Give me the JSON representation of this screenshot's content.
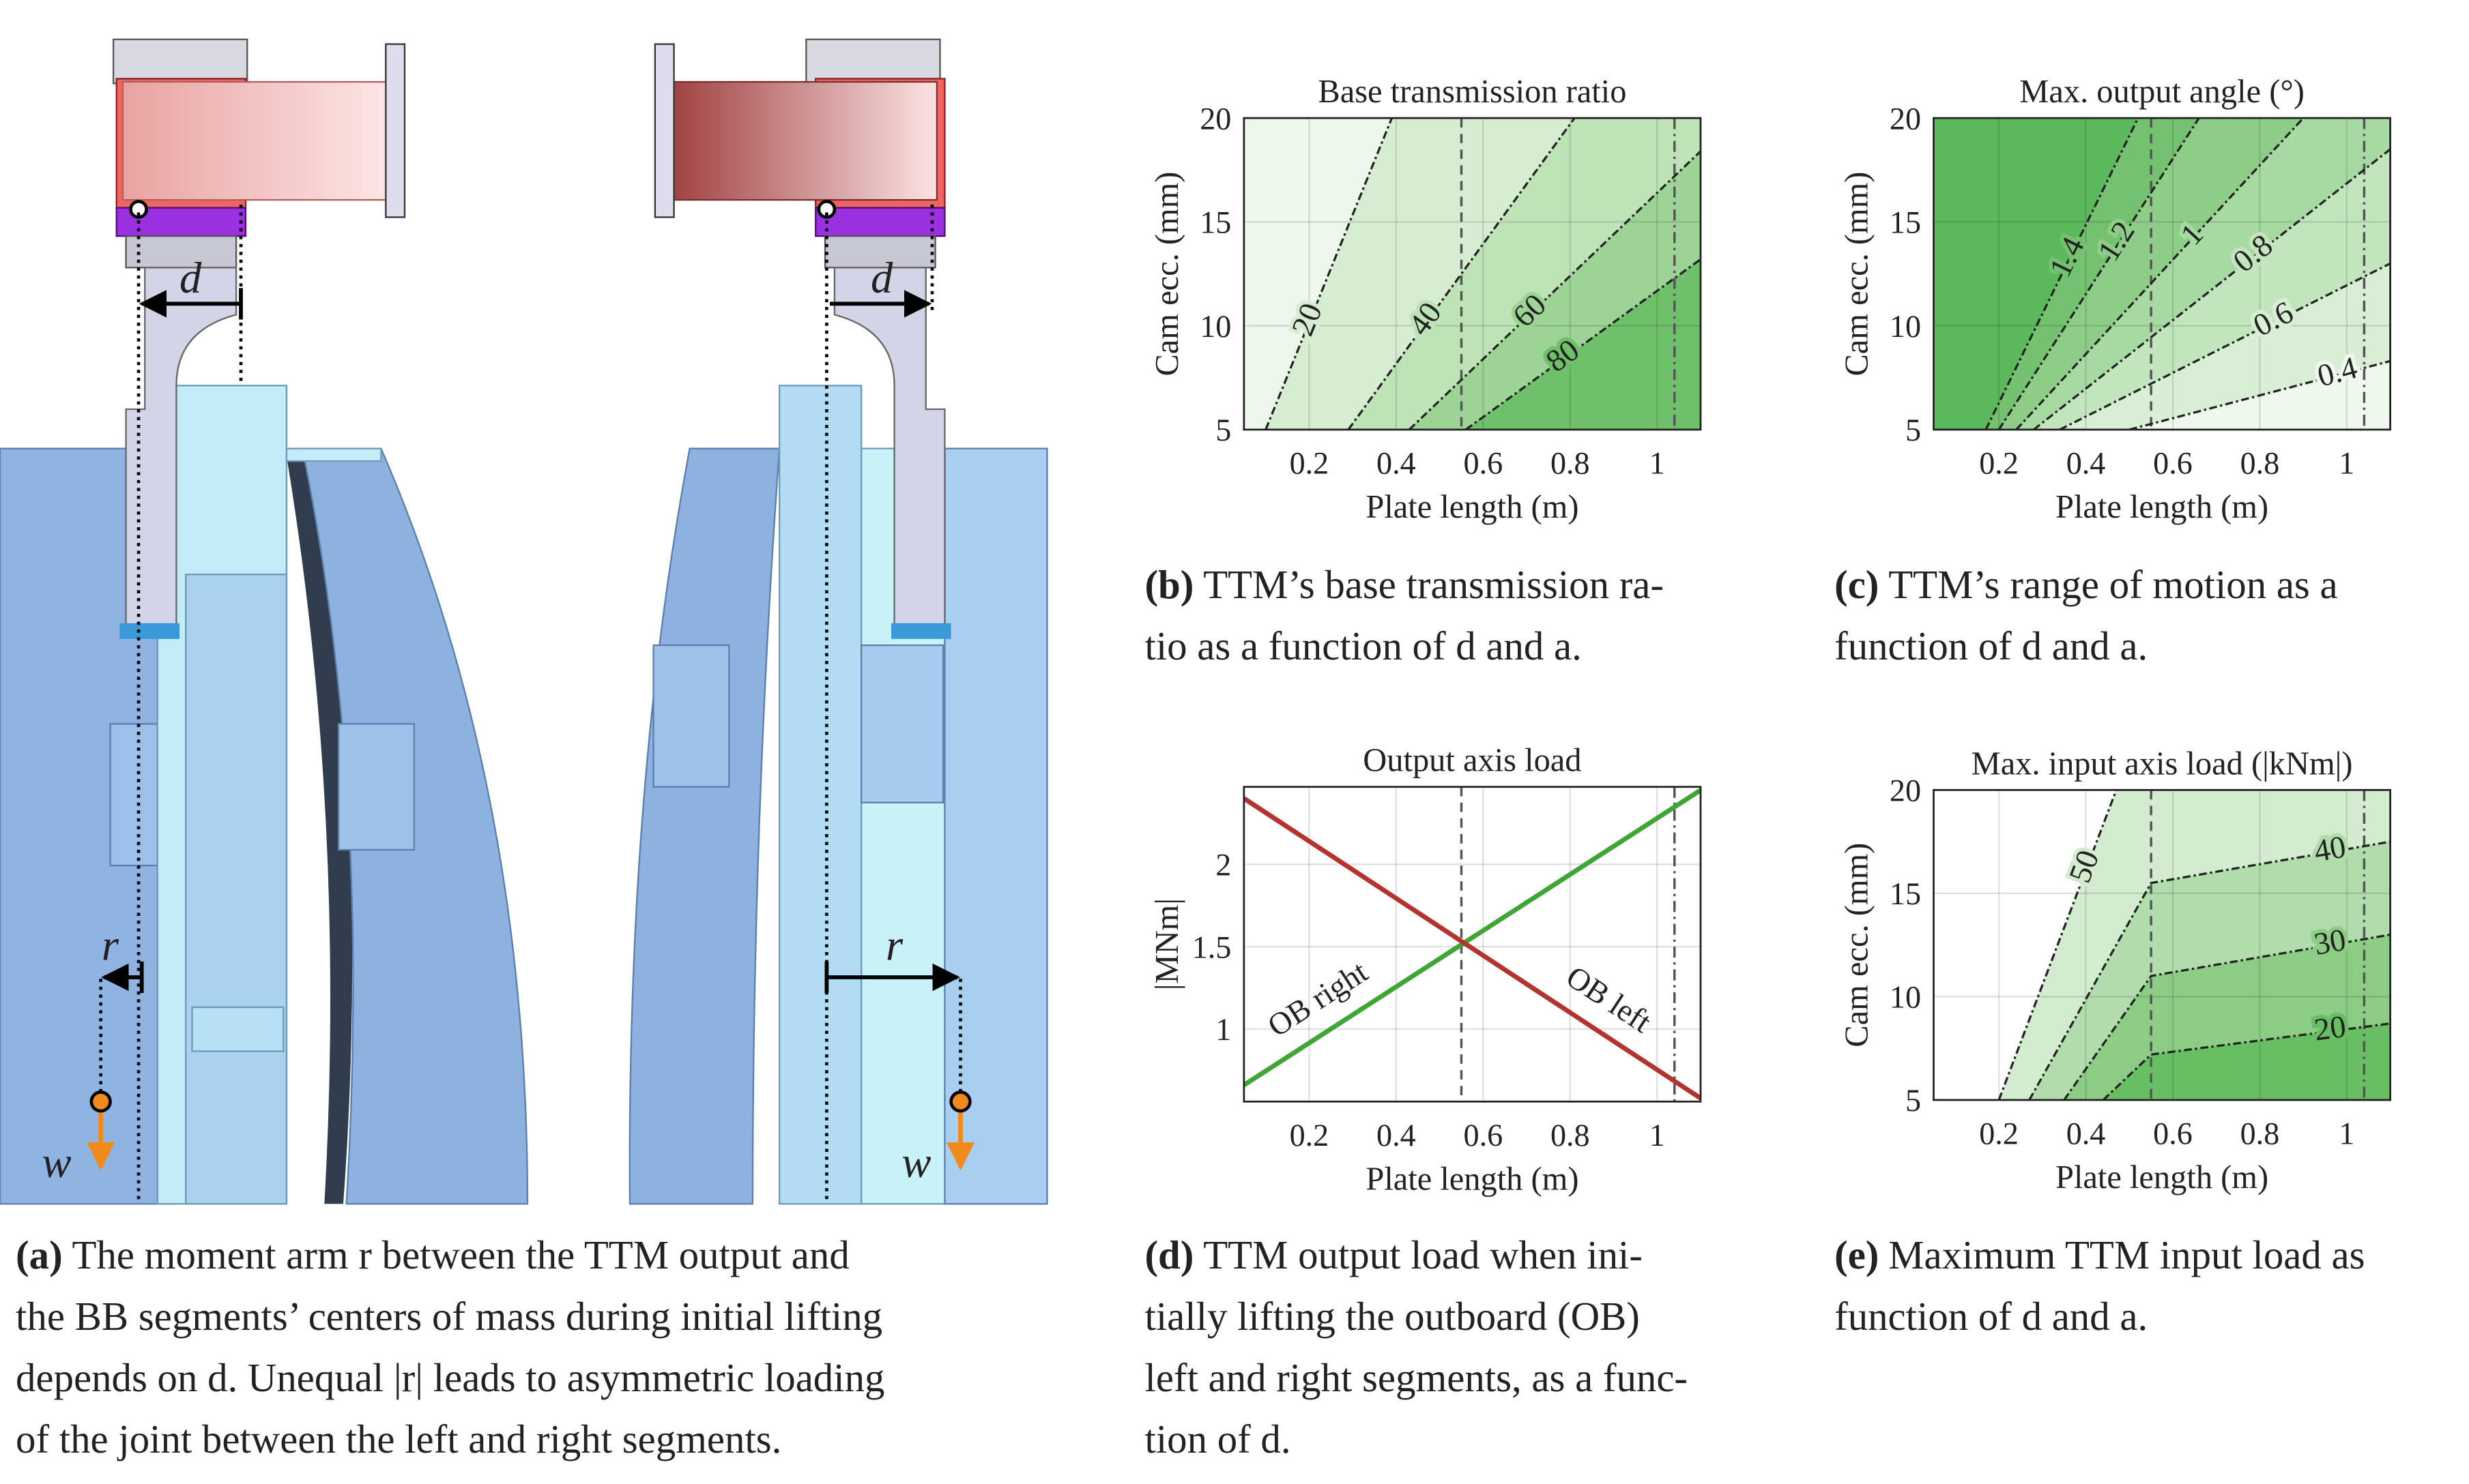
{
  "figure_a": {
    "labels": [
      "d",
      "d",
      "r",
      "r",
      "w",
      "w"
    ]
  },
  "captions": [
    {
      "label": "(a)",
      "lines": [
        "The moment arm r between the TTM output and",
        "the BB segments’ centers of mass during initial lifting",
        "depends on d. Unequal |r| leads to asymmetric loading",
        "of the joint between the left and right segments."
      ]
    },
    {
      "label": "(b)",
      "lines": [
        "TTM’s base transmission ra-",
        "tio as a function of d and a."
      ]
    },
    {
      "label": "(c)",
      "lines": [
        "TTM’s range of motion as a",
        "function of d and a."
      ]
    },
    {
      "label": "(d)",
      "lines": [
        "TTM output load when ini-",
        "tially lifting the outboard (OB)",
        "left and right segments, as a func-",
        "tion of d."
      ]
    },
    {
      "label": "(e)",
      "lines": [
        "Maximum TTM input load as",
        "function of d and a."
      ]
    }
  ],
  "chart_data": [
    {
      "type": "contour",
      "title": "Base transmission ratio",
      "x_label": "Plate length (m)",
      "y_label": "Cam ecc. (mm)",
      "xlim": [
        0.05,
        1.1
      ],
      "ylim": [
        5,
        20
      ],
      "xticks": [
        0.2,
        0.4,
        0.6,
        0.8,
        1
      ],
      "yticks": [
        5,
        10,
        15,
        20
      ],
      "grid": true,
      "vlines": [
        0.55,
        1.04
      ],
      "colors": [
        "#eef7ec",
        "#d6edd2",
        "#bde3b7",
        "#9bd494",
        "#6fc06a"
      ],
      "contours": [
        {
          "level": 20,
          "x": [
            0.1,
            0.39
          ],
          "y": [
            5,
            20
          ]
        },
        {
          "level": 40,
          "x": [
            0.29,
            0.81
          ],
          "y": [
            5,
            20
          ]
        },
        {
          "level": 60,
          "x": [
            0.43,
            1.1
          ],
          "y": [
            5,
            18.4
          ]
        },
        {
          "level": 80,
          "x": [
            0.56,
            1.1
          ],
          "y": [
            5,
            13.2
          ]
        }
      ]
    },
    {
      "type": "contour",
      "title": "Max. output angle (°)",
      "x_label": "Plate length (m)",
      "y_label": "Cam ecc. (mm)",
      "xlim": [
        0.05,
        1.1
      ],
      "ylim": [
        5,
        20
      ],
      "xticks": [
        0.2,
        0.4,
        0.6,
        0.8,
        1
      ],
      "yticks": [
        5,
        10,
        15,
        20
      ],
      "grid": true,
      "vlines": [
        0.55,
        1.04
      ],
      "colors": [
        "#5cb85c",
        "#74c26f",
        "#8dcd88",
        "#a7d9a2",
        "#c2e5bd",
        "#d9efd5",
        "#eef8ec"
      ],
      "contours": [
        {
          "level": 1.4,
          "x": [
            0.17,
            0.52
          ],
          "y": [
            5,
            20
          ]
        },
        {
          "level": 1.2,
          "x": [
            0.2,
            0.66
          ],
          "y": [
            5,
            20
          ]
        },
        {
          "level": 1,
          "x": [
            0.24,
            0.9
          ],
          "y": [
            5,
            20
          ]
        },
        {
          "level": 0.8,
          "x": [
            0.28,
            1.1
          ],
          "y": [
            5,
            18.5
          ]
        },
        {
          "level": 0.6,
          "x": [
            0.34,
            1.1
          ],
          "y": [
            5,
            13
          ]
        },
        {
          "level": 0.4,
          "x": [
            0.5,
            1.1
          ],
          "y": [
            5,
            8.3
          ]
        }
      ]
    },
    {
      "type": "line",
      "title": "Output axis load",
      "x_label": "Plate length (m)",
      "y_label": "|MNm|",
      "xlim": [
        0.05,
        1.1
      ],
      "ylim": [
        0.56,
        2.47
      ],
      "xticks": [
        0.2,
        0.4,
        0.6,
        0.8,
        1
      ],
      "yticks": [
        1,
        1.5,
        2
      ],
      "grid": true,
      "vlines": [
        0.55,
        1.04
      ],
      "x": [
        0.05,
        1.1
      ],
      "series": [
        {
          "name": "OB right",
          "color": "#3fa535",
          "values": [
            0.66,
            2.45
          ]
        },
        {
          "name": "OB left",
          "color": "#b5332e",
          "values": [
            2.4,
            0.58
          ]
        }
      ]
    },
    {
      "type": "contour",
      "title": "Max. input axis load (|kNm|)",
      "x_label": "Plate length (m)",
      "y_label": "Cam ecc. (mm)",
      "xlim": [
        0.05,
        1.1
      ],
      "ylim": [
        5,
        20
      ],
      "xticks": [
        0.2,
        0.4,
        0.6,
        0.8,
        1
      ],
      "yticks": [
        5,
        10,
        15,
        20
      ],
      "grid": true,
      "vlines": [
        0.55,
        1.04
      ],
      "colors": [
        "#ffffff",
        "#d3ebcf",
        "#b1dcab",
        "#8ccc85",
        "#68be63"
      ],
      "contours": [
        {
          "level": 50,
          "x": [
            0.2,
            0.47
          ],
          "y": [
            5,
            20
          ]
        },
        {
          "level": 40,
          "x": [
            0.27,
            0.55,
            1.1
          ],
          "y": [
            5,
            15.5,
            17.5
          ]
        },
        {
          "level": 30,
          "x": [
            0.35,
            0.55,
            1.1
          ],
          "y": [
            5,
            11,
            13
          ]
        },
        {
          "level": 20,
          "x": [
            0.44,
            0.55,
            1.1
          ],
          "y": [
            5,
            7.2,
            8.7
          ]
        }
      ]
    }
  ]
}
